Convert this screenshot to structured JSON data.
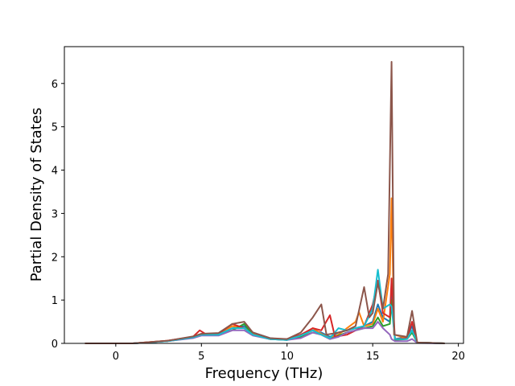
{
  "chart_data": {
    "type": "line",
    "xlabel": "Frequency (THz)",
    "ylabel": "Partial Density of States",
    "xlim": [
      -3.0,
      20.3
    ],
    "ylim": [
      0,
      6.85
    ],
    "xticks": [
      0,
      5,
      10,
      15,
      20
    ],
    "yticks": [
      0,
      1,
      2,
      3,
      4,
      5,
      6
    ],
    "grid": false,
    "legend": "none",
    "series": [
      {
        "color": "#1f77b4",
        "points": [
          [
            -1.8,
            0
          ],
          [
            1.0,
            0
          ],
          [
            3,
            0.05
          ],
          [
            4.5,
            0.15
          ],
          [
            5,
            0.22
          ],
          [
            6,
            0.2
          ],
          [
            6.8,
            0.35
          ],
          [
            7.5,
            0.4
          ],
          [
            8,
            0.25
          ],
          [
            9,
            0.12
          ],
          [
            10,
            0.08
          ],
          [
            10.8,
            0.2
          ],
          [
            11.5,
            0.3
          ],
          [
            12,
            0.25
          ],
          [
            12.5,
            0.15
          ],
          [
            13,
            0.25
          ],
          [
            13.5,
            0.3
          ],
          [
            14,
            0.35
          ],
          [
            14.5,
            0.4
          ],
          [
            15,
            0.5
          ],
          [
            15.3,
            0.9
          ],
          [
            15.6,
            0.6
          ],
          [
            16,
            0.5
          ],
          [
            16.1,
            1.2
          ],
          [
            16.3,
            0.1
          ],
          [
            17,
            0.15
          ],
          [
            17.3,
            0.4
          ],
          [
            17.6,
            0.02
          ],
          [
            19.2,
            0
          ]
        ]
      },
      {
        "color": "#ff7f0e",
        "points": [
          [
            -1.8,
            0
          ],
          [
            1.0,
            0
          ],
          [
            3,
            0.06
          ],
          [
            4.5,
            0.14
          ],
          [
            5,
            0.2
          ],
          [
            6,
            0.22
          ],
          [
            6.8,
            0.4
          ],
          [
            7.5,
            0.35
          ],
          [
            8,
            0.22
          ],
          [
            9,
            0.1
          ],
          [
            10,
            0.1
          ],
          [
            10.8,
            0.18
          ],
          [
            11.5,
            0.35
          ],
          [
            12,
            0.22
          ],
          [
            12.5,
            0.12
          ],
          [
            13,
            0.2
          ],
          [
            13.5,
            0.35
          ],
          [
            14,
            0.5
          ],
          [
            14.2,
            0.72
          ],
          [
            14.5,
            0.4
          ],
          [
            15,
            0.45
          ],
          [
            15.3,
            0.8
          ],
          [
            15.6,
            0.5
          ],
          [
            16,
            1.6
          ],
          [
            16.1,
            3.35
          ],
          [
            16.25,
            0.2
          ],
          [
            17,
            0.12
          ],
          [
            17.3,
            0.3
          ],
          [
            17.6,
            0.02
          ],
          [
            19.2,
            0
          ]
        ]
      },
      {
        "color": "#2ca02c",
        "points": [
          [
            -1.8,
            0
          ],
          [
            1.0,
            0
          ],
          [
            3,
            0.05
          ],
          [
            4.5,
            0.13
          ],
          [
            5,
            0.2
          ],
          [
            6,
            0.2
          ],
          [
            6.8,
            0.3
          ],
          [
            7.5,
            0.45
          ],
          [
            8,
            0.2
          ],
          [
            9,
            0.1
          ],
          [
            10,
            0.08
          ],
          [
            10.8,
            0.15
          ],
          [
            11.5,
            0.25
          ],
          [
            12,
            0.2
          ],
          [
            12.5,
            0.1
          ],
          [
            13,
            0.18
          ],
          [
            13.5,
            0.25
          ],
          [
            14,
            0.3
          ],
          [
            14.5,
            0.35
          ],
          [
            15,
            0.4
          ],
          [
            15.3,
            0.6
          ],
          [
            15.6,
            0.4
          ],
          [
            16,
            0.45
          ],
          [
            16.1,
            1.0
          ],
          [
            16.3,
            0.08
          ],
          [
            17,
            0.1
          ],
          [
            17.3,
            0.25
          ],
          [
            17.6,
            0.02
          ],
          [
            19.2,
            0
          ]
        ]
      },
      {
        "color": "#d62728",
        "points": [
          [
            -1.8,
            0
          ],
          [
            1.0,
            0
          ],
          [
            3,
            0.06
          ],
          [
            4.5,
            0.15
          ],
          [
            4.9,
            0.3
          ],
          [
            5.3,
            0.2
          ],
          [
            6,
            0.22
          ],
          [
            6.8,
            0.45
          ],
          [
            7.5,
            0.35
          ],
          [
            8,
            0.2
          ],
          [
            9,
            0.1
          ],
          [
            10,
            0.1
          ],
          [
            10.8,
            0.2
          ],
          [
            11.5,
            0.35
          ],
          [
            12,
            0.3
          ],
          [
            12.5,
            0.65
          ],
          [
            12.8,
            0.15
          ],
          [
            13.5,
            0.2
          ],
          [
            14,
            0.3
          ],
          [
            14.5,
            0.4
          ],
          [
            15,
            0.9
          ],
          [
            15.3,
            1.45
          ],
          [
            15.6,
            0.7
          ],
          [
            16,
            0.6
          ],
          [
            16.1,
            1.5
          ],
          [
            16.3,
            0.1
          ],
          [
            17,
            0.12
          ],
          [
            17.3,
            0.5
          ],
          [
            17.6,
            0.02
          ],
          [
            19.2,
            0
          ]
        ]
      },
      {
        "color": "#9467bd",
        "points": [
          [
            -1.8,
            0
          ],
          [
            1.0,
            0
          ],
          [
            3,
            0.05
          ],
          [
            4.5,
            0.12
          ],
          [
            5,
            0.18
          ],
          [
            6,
            0.18
          ],
          [
            6.8,
            0.3
          ],
          [
            7.5,
            0.3
          ],
          [
            8,
            0.18
          ],
          [
            9,
            0.1
          ],
          [
            10,
            0.08
          ],
          [
            10.8,
            0.12
          ],
          [
            11.5,
            0.25
          ],
          [
            12,
            0.2
          ],
          [
            12.5,
            0.1
          ],
          [
            13,
            0.15
          ],
          [
            13.5,
            0.25
          ],
          [
            14,
            0.3
          ],
          [
            14.5,
            0.35
          ],
          [
            15,
            0.35
          ],
          [
            15.3,
            0.5
          ],
          [
            15.6,
            0.35
          ],
          [
            16,
            0.2
          ],
          [
            16.1,
            0.1
          ],
          [
            16.3,
            0.05
          ],
          [
            17,
            0.05
          ],
          [
            17.3,
            0.1
          ],
          [
            17.6,
            0.01
          ],
          [
            19.2,
            0
          ]
        ]
      },
      {
        "color": "#17becf",
        "points": [
          [
            -1.8,
            0
          ],
          [
            1.0,
            0
          ],
          [
            3,
            0.05
          ],
          [
            4.5,
            0.14
          ],
          [
            5,
            0.2
          ],
          [
            6,
            0.2
          ],
          [
            6.8,
            0.35
          ],
          [
            7.5,
            0.35
          ],
          [
            8,
            0.2
          ],
          [
            9,
            0.1
          ],
          [
            10,
            0.08
          ],
          [
            10.8,
            0.18
          ],
          [
            11.5,
            0.3
          ],
          [
            12,
            0.2
          ],
          [
            12.5,
            0.12
          ],
          [
            13,
            0.35
          ],
          [
            13.5,
            0.3
          ],
          [
            14,
            0.35
          ],
          [
            14.5,
            0.4
          ],
          [
            15,
            0.8
          ],
          [
            15.3,
            1.7
          ],
          [
            15.6,
            0.8
          ],
          [
            16,
            0.9
          ],
          [
            16.1,
            0.85
          ],
          [
            16.3,
            0.1
          ],
          [
            17,
            0.1
          ],
          [
            17.3,
            0.3
          ],
          [
            17.6,
            0.02
          ],
          [
            19.2,
            0
          ]
        ]
      },
      {
        "color": "#8c564b",
        "points": [
          [
            -1.8,
            0
          ],
          [
            1.0,
            0
          ],
          [
            3,
            0.06
          ],
          [
            4.5,
            0.16
          ],
          [
            5,
            0.22
          ],
          [
            6,
            0.24
          ],
          [
            6.8,
            0.45
          ],
          [
            7.5,
            0.5
          ],
          [
            8,
            0.25
          ],
          [
            9,
            0.12
          ],
          [
            10,
            0.1
          ],
          [
            10.8,
            0.25
          ],
          [
            11.5,
            0.6
          ],
          [
            12,
            0.9
          ],
          [
            12.3,
            0.2
          ],
          [
            13,
            0.25
          ],
          [
            13.5,
            0.3
          ],
          [
            14,
            0.4
          ],
          [
            14.5,
            1.3
          ],
          [
            14.8,
            0.6
          ],
          [
            15,
            0.7
          ],
          [
            15.3,
            1.4
          ],
          [
            15.6,
            0.8
          ],
          [
            15.9,
            1.6
          ],
          [
            16.1,
            6.5
          ],
          [
            16.25,
            0.2
          ],
          [
            17,
            0.15
          ],
          [
            17.3,
            0.75
          ],
          [
            17.6,
            0.02
          ],
          [
            19.2,
            0
          ]
        ]
      }
    ]
  }
}
